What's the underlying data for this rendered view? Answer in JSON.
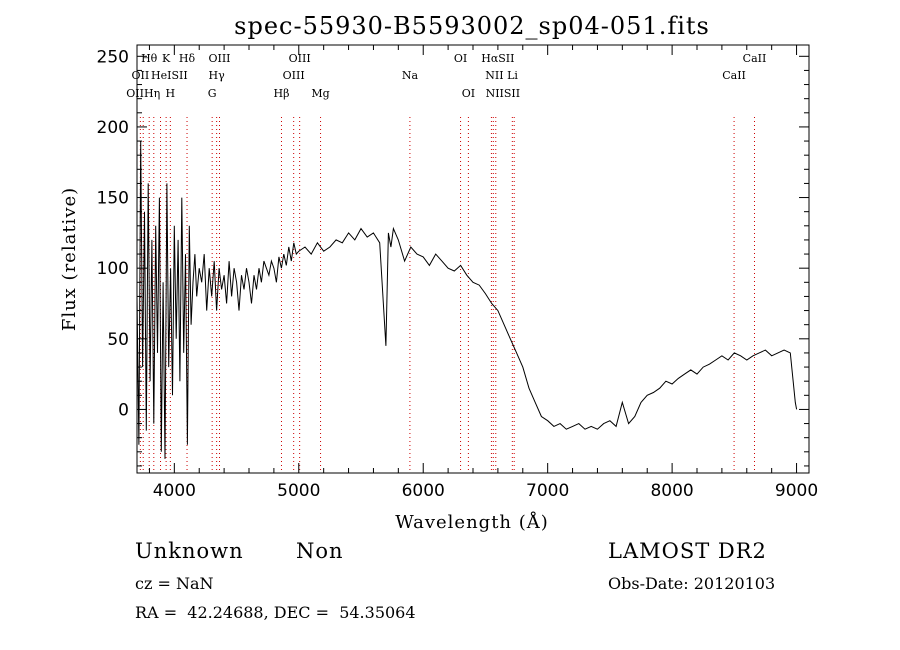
{
  "chart_data": {
    "type": "line",
    "title": "spec-55930-B5593002_sp04-051.fits",
    "xlabel": "Wavelength (Å)",
    "ylabel": "Flux (relative)",
    "xlim": [
      3700,
      9100
    ],
    "ylim": [
      -45,
      258
    ],
    "xticks": [
      4000,
      5000,
      6000,
      7000,
      8000,
      9000
    ],
    "yticks": [
      0,
      50,
      100,
      150,
      200,
      250
    ],
    "grid": false,
    "line_color": "#000000",
    "marker_color": "#cc0000",
    "series": [
      {
        "x": [
          3700,
          3715,
          3730,
          3745,
          3760,
          3775,
          3790,
          3805,
          3820,
          3835,
          3850,
          3865,
          3880,
          3895,
          3910,
          3925,
          3940,
          3955,
          3970,
          3985,
          4000,
          4015,
          4030,
          4045,
          4060,
          4075,
          4090,
          4105,
          4120,
          4135,
          4150,
          4165,
          4180,
          4200,
          4220,
          4240,
          4260,
          4280,
          4300,
          4320,
          4340,
          4360,
          4380,
          4400,
          4420,
          4440,
          4460,
          4480,
          4500,
          4520,
          4540,
          4560,
          4580,
          4600,
          4620,
          4640,
          4660,
          4680,
          4700,
          4720,
          4740,
          4760,
          4780,
          4800,
          4820,
          4840,
          4860,
          4880,
          4900,
          4920,
          4940,
          4960,
          4980,
          5000,
          5050,
          5100,
          5150,
          5200,
          5250,
          5300,
          5350,
          5400,
          5450,
          5500,
          5550,
          5600,
          5650,
          5700,
          5720,
          5740,
          5760,
          5800,
          5850,
          5900,
          5950,
          6000,
          6050,
          6100,
          6150,
          6200,
          6250,
          6300,
          6350,
          6400,
          6450,
          6500,
          6550,
          6600,
          6650,
          6700,
          6750,
          6800,
          6850,
          6900,
          6950,
          7000,
          7050,
          7100,
          7150,
          7200,
          7250,
          7300,
          7350,
          7400,
          7450,
          7500,
          7550,
          7600,
          7650,
          7700,
          7750,
          7800,
          7850,
          7900,
          7950,
          8000,
          8050,
          8100,
          8150,
          8200,
          8250,
          8300,
          8350,
          8400,
          8450,
          8500,
          8550,
          8600,
          8650,
          8700,
          8750,
          8800,
          8850,
          8900,
          8950,
          8990,
          9000
        ],
        "y": [
          80,
          -25,
          190,
          30,
          140,
          -15,
          160,
          20,
          120,
          -10,
          130,
          40,
          150,
          -30,
          90,
          -35,
          160,
          30,
          100,
          10,
          130,
          50,
          120,
          20,
          150,
          40,
          110,
          -25,
          130,
          60,
          90,
          110,
          80,
          100,
          90,
          110,
          70,
          100,
          80,
          105,
          70,
          100,
          85,
          95,
          75,
          105,
          80,
          100,
          90,
          70,
          95,
          85,
          100,
          90,
          75,
          95,
          85,
          100,
          90,
          105,
          100,
          95,
          105,
          100,
          90,
          108,
          100,
          110,
          102,
          115,
          105,
          118,
          110,
          112,
          115,
          110,
          118,
          112,
          115,
          120,
          118,
          125,
          120,
          128,
          122,
          125,
          118,
          45,
          125,
          115,
          128,
          120,
          105,
          115,
          110,
          108,
          102,
          110,
          105,
          100,
          98,
          102,
          95,
          90,
          88,
          82,
          75,
          70,
          60,
          50,
          40,
          30,
          15,
          5,
          -5,
          -8,
          -12,
          -10,
          -14,
          -12,
          -10,
          -14,
          -12,
          -14,
          -10,
          -8,
          -12,
          5,
          -10,
          -5,
          5,
          10,
          12,
          15,
          20,
          18,
          22,
          25,
          28,
          25,
          30,
          32,
          35,
          38,
          35,
          40,
          38,
          35,
          38,
          40,
          42,
          38,
          40,
          42,
          40,
          5,
          0
        ]
      }
    ],
    "line_labels": [
      {
        "text": "Hθ",
        "x": 3798,
        "row": 1
      },
      {
        "text": "K",
        "x": 3934,
        "row": 1
      },
      {
        "text": "Hδ",
        "x": 4102,
        "row": 1
      },
      {
        "text": "OIII",
        "x": 4363,
        "row": 1
      },
      {
        "text": "OIII",
        "x": 5007,
        "row": 1
      },
      {
        "text": "OI",
        "x": 6300,
        "row": 1
      },
      {
        "text": "HαSII",
        "x": 6600,
        "row": 1
      },
      {
        "text": "CaII",
        "x": 8662,
        "row": 1
      },
      {
        "text": "OII",
        "x": 3727,
        "row": 2
      },
      {
        "text": "HeISII",
        "x": 3960,
        "row": 2
      },
      {
        "text": "Hγ",
        "x": 4340,
        "row": 2
      },
      {
        "text": "OIII",
        "x": 4959,
        "row": 2
      },
      {
        "text": "Na",
        "x": 5893,
        "row": 2
      },
      {
        "text": "NII Li",
        "x": 6630,
        "row": 2
      },
      {
        "text": "CaII",
        "x": 8498,
        "row": 2
      },
      {
        "text": "OIIHη",
        "x": 3750,
        "row": 3
      },
      {
        "text": "H",
        "x": 3968,
        "row": 3
      },
      {
        "text": "G",
        "x": 4304,
        "row": 3
      },
      {
        "text": "Hβ",
        "x": 4861,
        "row": 3
      },
      {
        "text": "Mg",
        "x": 5175,
        "row": 3
      },
      {
        "text": "OI",
        "x": 6363,
        "row": 3
      },
      {
        "text": "NIISII",
        "x": 6640,
        "row": 3
      }
    ],
    "marker_lines": [
      3727,
      3750,
      3798,
      3835,
      3889,
      3934,
      3968,
      4102,
      4304,
      4340,
      4363,
      4861,
      4959,
      5007,
      5175,
      5893,
      6300,
      6363,
      6548,
      6563,
      6583,
      6716,
      6731,
      8498,
      8662
    ]
  },
  "info": {
    "class_label": "Unknown",
    "subclass_label": "Non",
    "survey": "LAMOST DR2",
    "redshift": "cz = NaN",
    "obs_date": "Obs-Date: 20120103",
    "coords": "RA =  42.24688, DEC =  54.35064"
  }
}
